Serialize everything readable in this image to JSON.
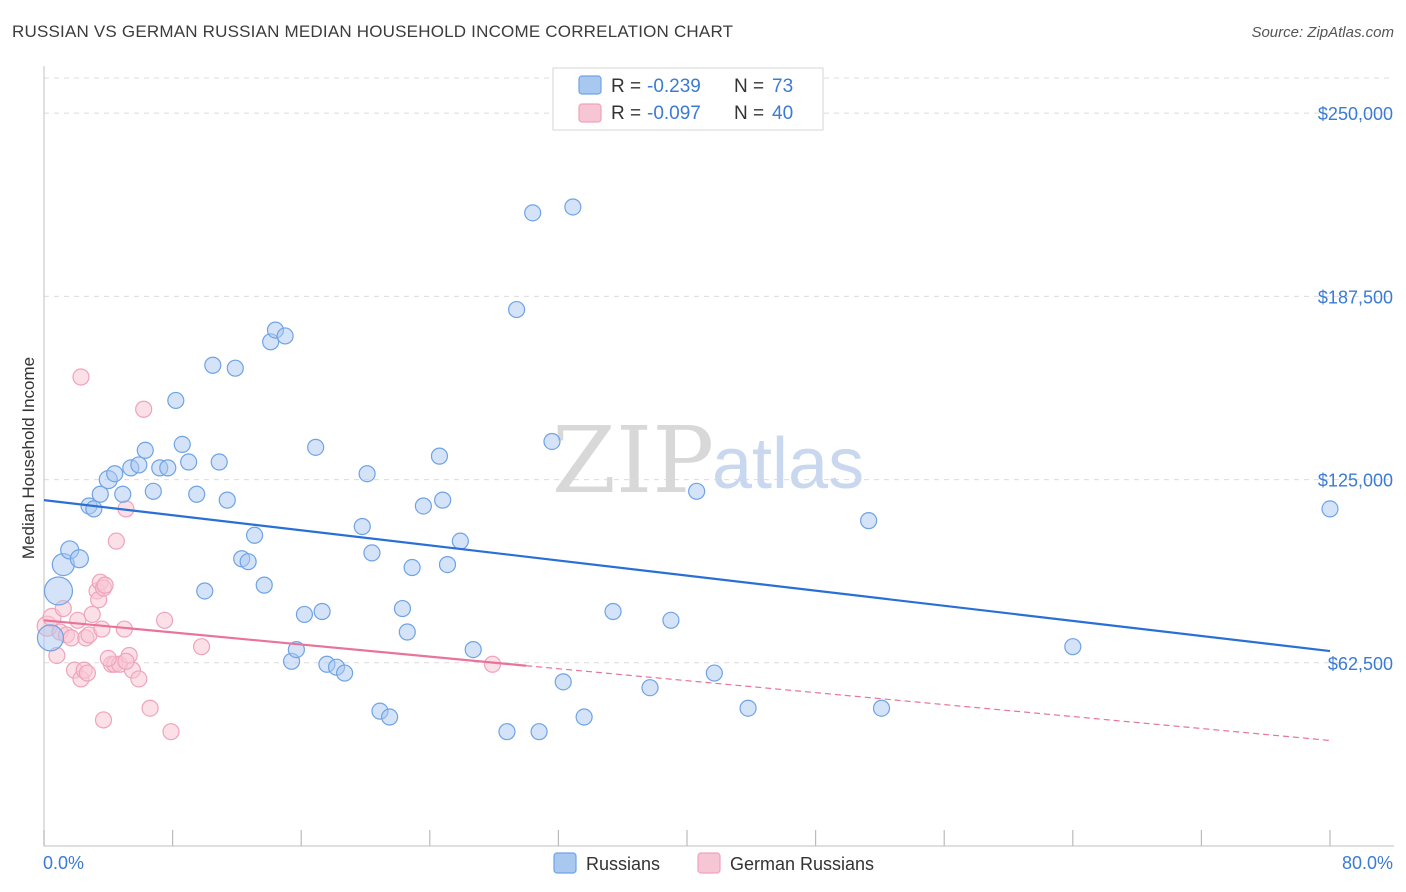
{
  "header": {
    "title": "RUSSIAN VS GERMAN RUSSIAN MEDIAN HOUSEHOLD INCOME CORRELATION CHART",
    "source": "Source: ZipAtlas.com"
  },
  "watermark": {
    "zip": "ZIP",
    "atlas": "atlas"
  },
  "colors": {
    "russians": "#6fa3e6",
    "russians_fill": "#a9c8f0",
    "german_russians": "#f0a3ba",
    "german_russians_fill": "#f7c6d5",
    "trend_blue": "#2a6fd6",
    "trend_pink": "#e8739b",
    "axis_label": "#3a7bd5"
  },
  "legend": {
    "rows": [
      {
        "series": "Russians",
        "r_label": "R =",
        "r_value": "-0.239",
        "n_label": "N =",
        "n_value": "73"
      },
      {
        "series": "German Russians",
        "r_label": "R =",
        "r_value": "-0.097",
        "n_label": "N =",
        "n_value": "40"
      }
    ]
  },
  "chart_data": {
    "type": "scatter",
    "title": "RUSSIAN VS GERMAN RUSSIAN MEDIAN HOUSEHOLD INCOME CORRELATION CHART",
    "xlabel": "",
    "ylabel": "Median Household Income",
    "xlim": [
      0,
      80
    ],
    "ylim": [
      0,
      262000
    ],
    "x_tick_labels": [
      "0.0%",
      "80.0%"
    ],
    "y_ticks": [
      62500,
      125000,
      187500,
      250000
    ],
    "y_tick_labels": [
      "$62,500",
      "$125,000",
      "$187,500",
      "$250,000"
    ],
    "grid": true,
    "legend_position": "bottom",
    "series": [
      {
        "name": "Russians",
        "r": -0.239,
        "n": 73,
        "trend": {
          "x": [
            0,
            80
          ],
          "y": [
            118000,
            66500
          ],
          "dashed_from": null
        },
        "points": [
          [
            0.9,
            87000,
            14
          ],
          [
            1.2,
            96000,
            11
          ],
          [
            1.6,
            101000,
            9
          ],
          [
            2.2,
            98000,
            9
          ],
          [
            2.8,
            116000,
            8
          ],
          [
            3.1,
            115000,
            8
          ],
          [
            3.5,
            120000,
            8
          ],
          [
            4.0,
            125000,
            9
          ],
          [
            4.4,
            127000,
            8
          ],
          [
            4.9,
            120000,
            8
          ],
          [
            5.4,
            129000,
            8
          ],
          [
            5.9,
            130000,
            8
          ],
          [
            6.3,
            135000,
            8
          ],
          [
            6.8,
            121000,
            8
          ],
          [
            7.2,
            129000,
            8
          ],
          [
            7.7,
            129000,
            8
          ],
          [
            8.2,
            152000,
            8
          ],
          [
            8.6,
            137000,
            8
          ],
          [
            9.0,
            131000,
            8
          ],
          [
            9.5,
            120000,
            8
          ],
          [
            10.0,
            87000,
            8
          ],
          [
            10.5,
            164000,
            8
          ],
          [
            10.9,
            131000,
            8
          ],
          [
            11.4,
            118000,
            8
          ],
          [
            11.9,
            163000,
            8
          ],
          [
            12.3,
            98000,
            8
          ],
          [
            12.7,
            97000,
            8
          ],
          [
            13.1,
            106000,
            8
          ],
          [
            13.7,
            89000,
            8
          ],
          [
            14.1,
            172000,
            8
          ],
          [
            14.4,
            176000,
            8
          ],
          [
            15.0,
            174000,
            8
          ],
          [
            15.4,
            63000,
            8
          ],
          [
            15.7,
            67000,
            8
          ],
          [
            16.2,
            79000,
            8
          ],
          [
            16.9,
            136000,
            8
          ],
          [
            17.3,
            80000,
            8
          ],
          [
            17.6,
            62000,
            8
          ],
          [
            18.2,
            61000,
            8
          ],
          [
            18.7,
            59000,
            8
          ],
          [
            19.8,
            109000,
            8
          ],
          [
            20.1,
            127000,
            8
          ],
          [
            20.4,
            100000,
            8
          ],
          [
            20.9,
            46000,
            8
          ],
          [
            21.5,
            44000,
            8
          ],
          [
            22.3,
            81000,
            8
          ],
          [
            22.6,
            73000,
            8
          ],
          [
            22.9,
            95000,
            8
          ],
          [
            23.6,
            116000,
            8
          ],
          [
            24.6,
            133000,
            8
          ],
          [
            24.8,
            118000,
            8
          ],
          [
            25.1,
            96000,
            8
          ],
          [
            25.9,
            104000,
            8
          ],
          [
            26.7,
            67000,
            8
          ],
          [
            28.8,
            39000,
            8
          ],
          [
            29.4,
            183000,
            8
          ],
          [
            30.4,
            216000,
            8
          ],
          [
            30.8,
            39000,
            8
          ],
          [
            31.6,
            138000,
            8
          ],
          [
            32.3,
            56000,
            8
          ],
          [
            32.9,
            218000,
            8
          ],
          [
            33.6,
            44000,
            8
          ],
          [
            35.4,
            80000,
            8
          ],
          [
            37.7,
            54000,
            8
          ],
          [
            39.0,
            77000,
            8
          ],
          [
            40.6,
            121000,
            8
          ],
          [
            41.7,
            59000,
            8
          ],
          [
            43.8,
            47000,
            8
          ],
          [
            51.3,
            111000,
            8
          ],
          [
            52.1,
            47000,
            8
          ],
          [
            64.0,
            68000,
            8
          ],
          [
            80.0,
            115000,
            8
          ],
          [
            0.4,
            71000,
            13
          ]
        ]
      },
      {
        "name": "German Russians",
        "r": -0.097,
        "n": 40,
        "trend": {
          "x": [
            0,
            30,
            80
          ],
          "y": [
            77000,
            61500,
            36000
          ],
          "dashed_from": 30
        },
        "points": [
          [
            0.2,
            75000,
            10
          ],
          [
            0.5,
            78000,
            9
          ],
          [
            0.8,
            65000,
            8
          ],
          [
            1.0,
            73000,
            8
          ],
          [
            1.2,
            81000,
            8
          ],
          [
            1.4,
            72000,
            8
          ],
          [
            1.7,
            71000,
            8
          ],
          [
            1.9,
            60000,
            8
          ],
          [
            2.1,
            77000,
            8
          ],
          [
            2.3,
            57000,
            8
          ],
          [
            2.5,
            60000,
            8
          ],
          [
            2.7,
            59000,
            8
          ],
          [
            2.3,
            160000,
            8
          ],
          [
            2.6,
            71000,
            8
          ],
          [
            2.8,
            72000,
            8
          ],
          [
            3.0,
            79000,
            8
          ],
          [
            3.3,
            87000,
            8
          ],
          [
            3.6,
            74000,
            8
          ],
          [
            3.4,
            84000,
            8
          ],
          [
            3.5,
            90000,
            8
          ],
          [
            3.7,
            88000,
            8
          ],
          [
            3.8,
            89000,
            8
          ],
          [
            3.7,
            43000,
            8
          ],
          [
            4.2,
            62000,
            8
          ],
          [
            4.4,
            62000,
            8
          ],
          [
            4.5,
            104000,
            8
          ],
          [
            4.7,
            62000,
            8
          ],
          [
            5.0,
            74000,
            8
          ],
          [
            5.1,
            115000,
            8
          ],
          [
            5.3,
            65000,
            8
          ],
          [
            5.5,
            60000,
            8
          ],
          [
            5.9,
            57000,
            8
          ],
          [
            6.2,
            149000,
            8
          ],
          [
            6.6,
            47000,
            8
          ],
          [
            7.5,
            77000,
            8
          ],
          [
            7.9,
            39000,
            8
          ],
          [
            9.8,
            68000,
            8
          ],
          [
            4.0,
            64000,
            8
          ],
          [
            5.1,
            63000,
            8
          ],
          [
            27.9,
            62000,
            8
          ]
        ]
      }
    ]
  }
}
